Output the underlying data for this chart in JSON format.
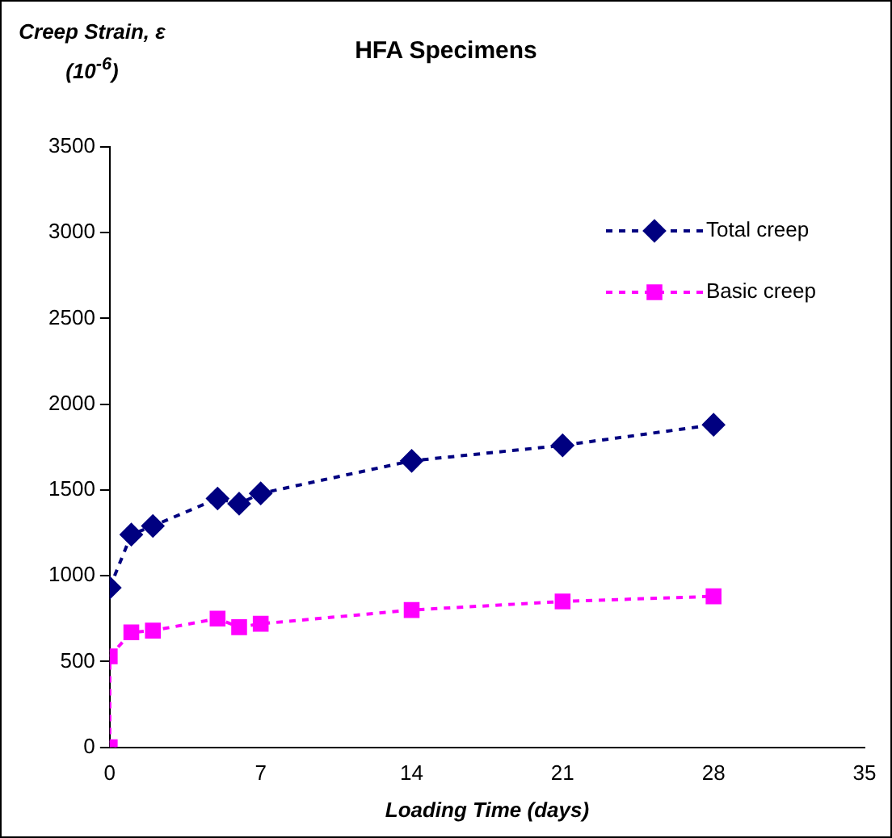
{
  "chart_data": {
    "type": "line",
    "title": "HFA Specimens",
    "xlabel": "Loading Time (days)",
    "ylabel": "Creep Strain, ε (10$^{-6}$)",
    "xlim": [
      0,
      35
    ],
    "xticks": [
      0,
      7,
      14,
      21,
      28,
      35
    ],
    "ylim": [
      0,
      3500
    ],
    "yticks": [
      0,
      500,
      1000,
      1500,
      2000,
      2500,
      3000,
      3500
    ],
    "grid": false,
    "legend": "top right",
    "line_style": "dashed",
    "series": [
      {
        "name": "Total creep",
        "color": "#000080",
        "marker": "diamond",
        "x": [
          0,
          1,
          2,
          5,
          6,
          7,
          14,
          21,
          28
        ],
        "values": [
          930,
          1240,
          1290,
          1450,
          1420,
          1480,
          1670,
          1760,
          1880
        ]
      },
      {
        "name": "Basic creep",
        "color": "#ff00ff",
        "marker": "square",
        "x": [
          0,
          0,
          1,
          2,
          5,
          6,
          7,
          14,
          21,
          28
        ],
        "values": [
          0,
          530,
          670,
          680,
          750,
          700,
          720,
          800,
          850,
          880
        ]
      }
    ]
  }
}
